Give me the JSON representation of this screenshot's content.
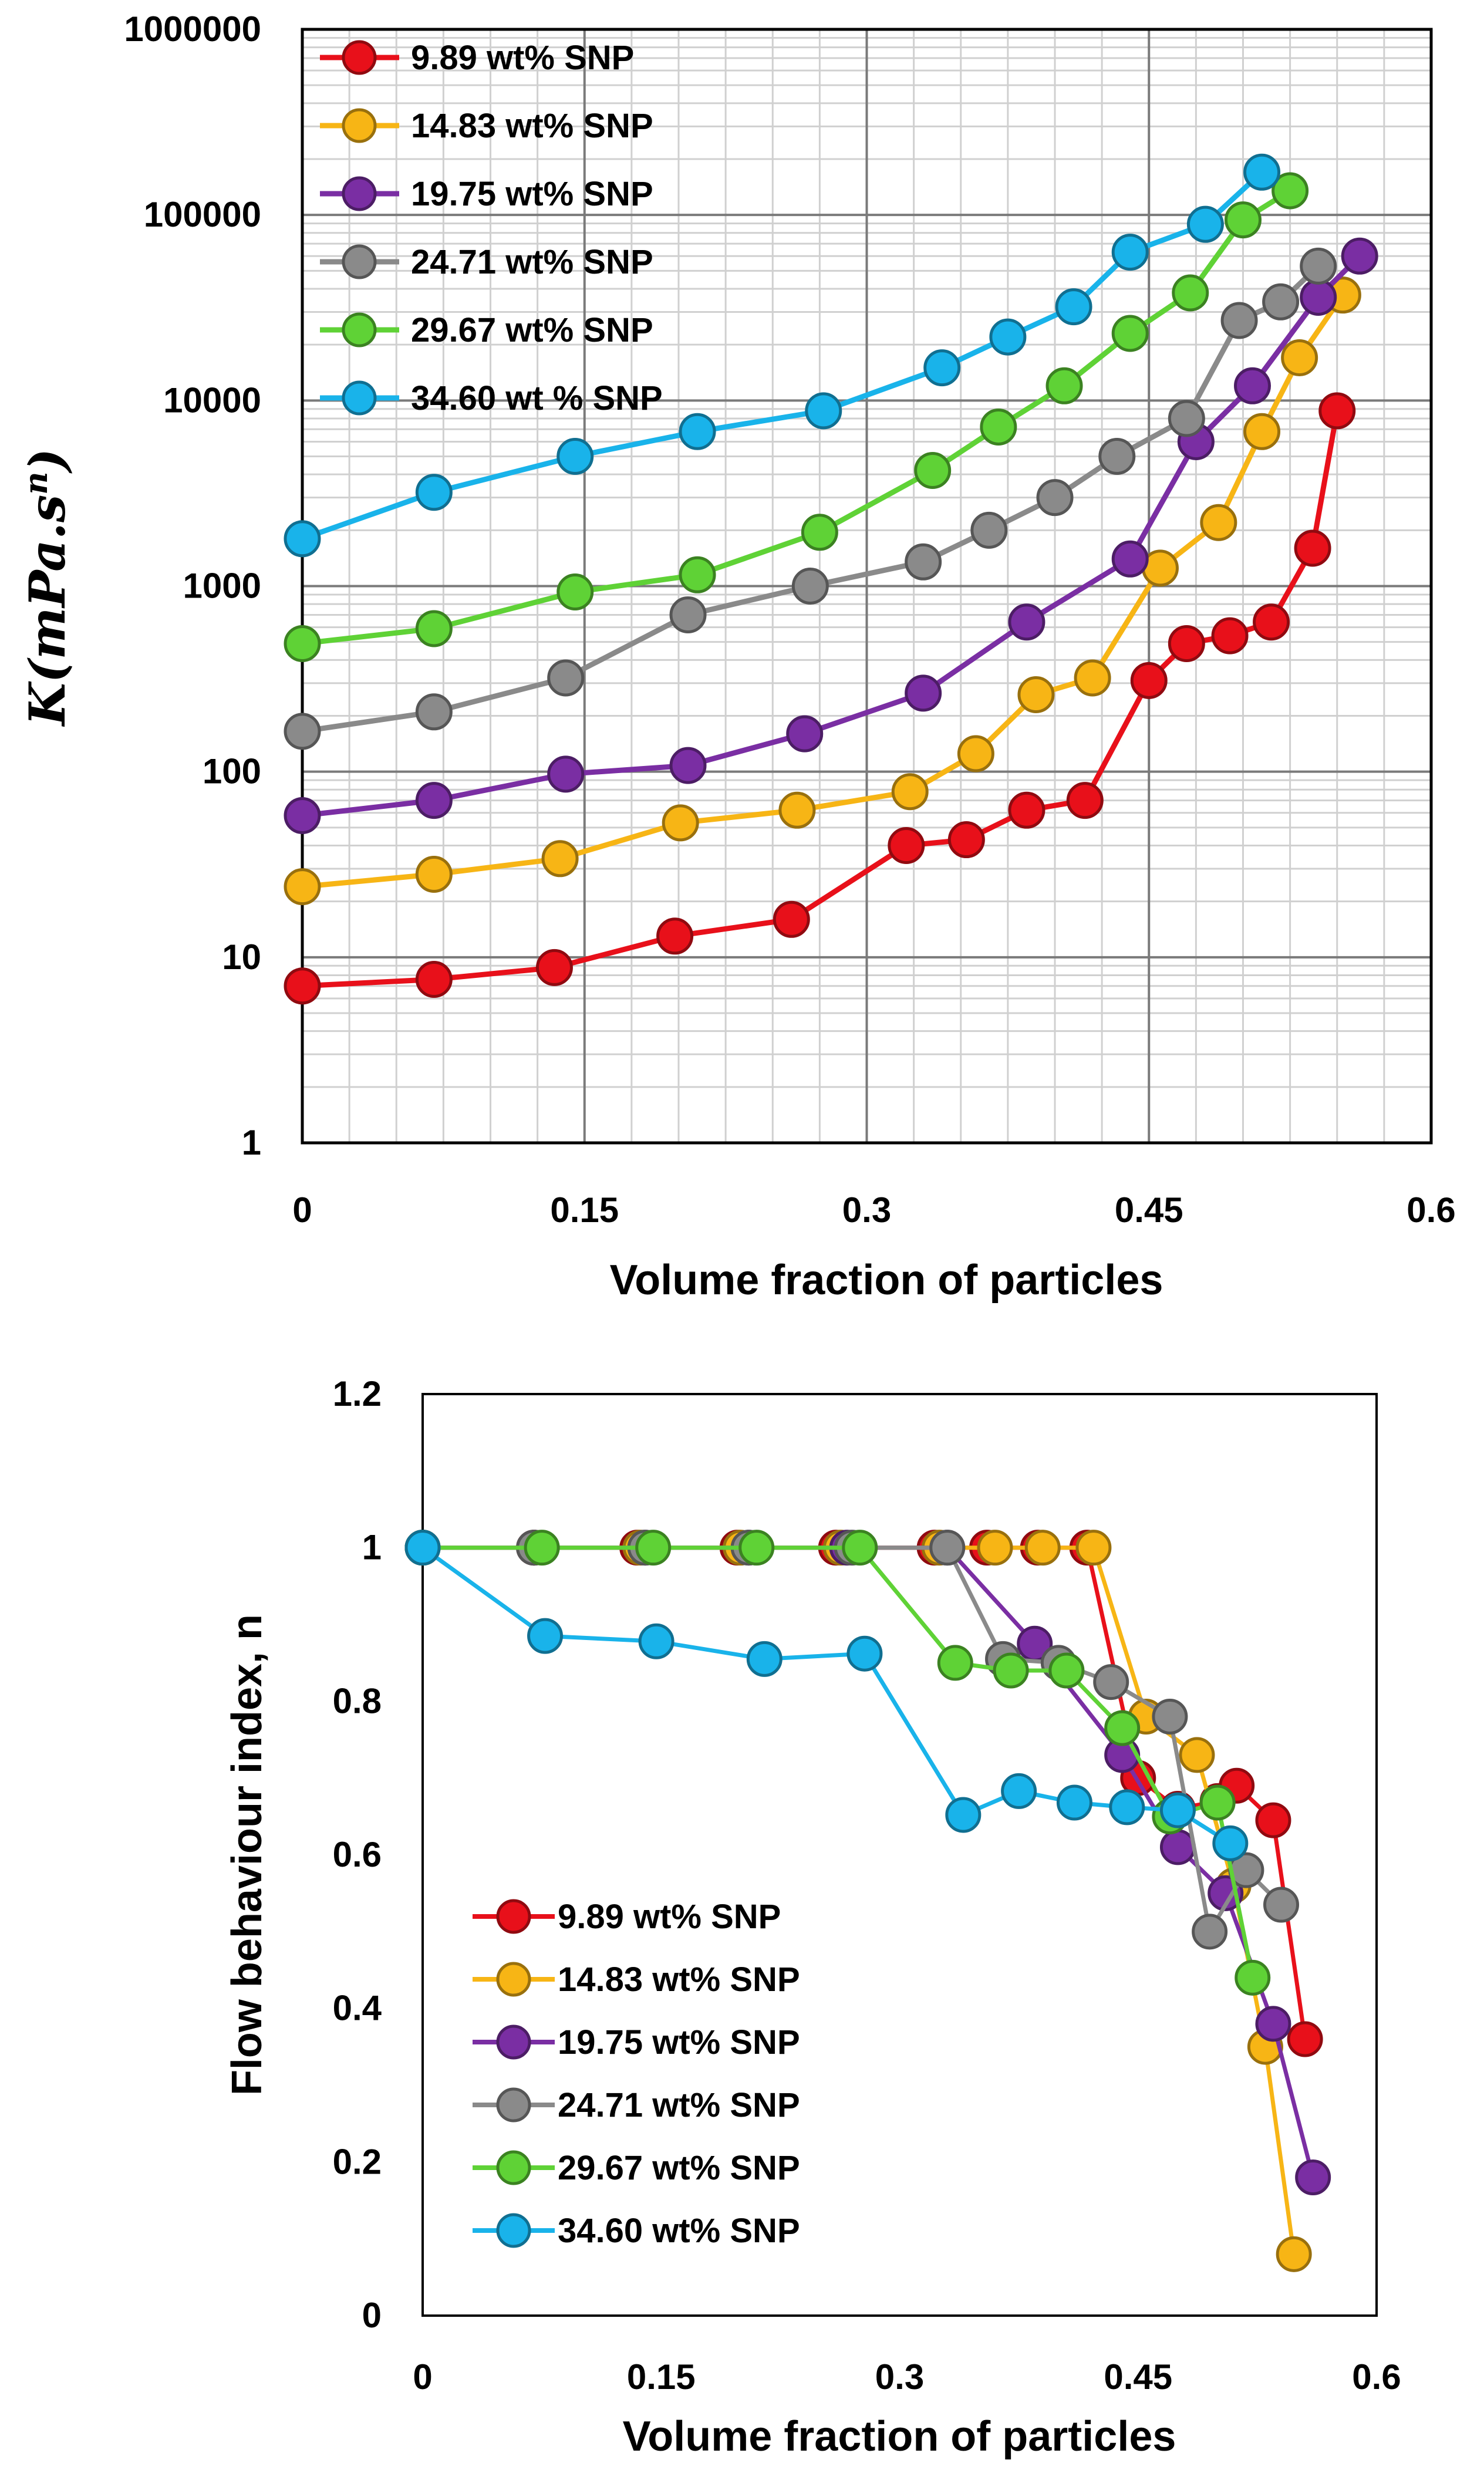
{
  "colors": {
    "s1": "#e8101a",
    "s2": "#f7b515",
    "s3": "#7a2ea3",
    "s4": "#8a8a8a",
    "s5": "#5fd236",
    "s6": "#19b3ea"
  },
  "chart_data": [
    {
      "type": "line",
      "scale": "log-y",
      "xlabel": "Volume fraction of particles",
      "ylabel": {
        "prefix": "K(",
        "base": "mPa.s",
        "sup": "n",
        "suffix": ")"
      },
      "xlim": [
        0,
        0.6
      ],
      "ylim": [
        1,
        1000000
      ],
      "x_ticks": [
        "0",
        "0.15",
        "0.3",
        "0.45",
        "0.6"
      ],
      "y_ticks": [
        "1",
        "10",
        "100",
        "1000",
        "10000",
        "100000",
        "1000000"
      ],
      "grid": true,
      "legend_position": "top-left",
      "series": [
        {
          "name": "9.89  wt% SNP",
          "x": [
            0,
            0.07,
            0.134,
            0.198,
            0.26,
            0.321,
            0.353,
            0.385,
            0.416,
            0.45,
            0.47,
            0.493,
            0.515,
            0.537,
            0.55
          ],
          "y": [
            7,
            7.6,
            8.8,
            13,
            16,
            40,
            43,
            62,
            70,
            310,
            490,
            540,
            640,
            1600,
            8800
          ]
        },
        {
          "name": "14.83 wt% SNP",
          "x": [
            0,
            0.07,
            0.137,
            0.201,
            0.263,
            0.323,
            0.358,
            0.39,
            0.42,
            0.456,
            0.487,
            0.51,
            0.53,
            0.553
          ],
          "y": [
            24,
            28,
            34,
            53,
            62,
            78,
            125,
            260,
            320,
            1250,
            2200,
            6800,
            17000,
            37000
          ]
        },
        {
          "name": "19.75 wt% SNP",
          "x": [
            0,
            0.07,
            0.14,
            0.205,
            0.267,
            0.33,
            0.385,
            0.44,
            0.475,
            0.505,
            0.54,
            0.562
          ],
          "y": [
            58,
            70,
            97,
            108,
            160,
            265,
            640,
            1400,
            6000,
            12000,
            36000,
            60000
          ]
        },
        {
          "name": "24.71 wt% SNP",
          "x": [
            0,
            0.07,
            0.14,
            0.205,
            0.27,
            0.33,
            0.365,
            0.4,
            0.433,
            0.47,
            0.498,
            0.52,
            0.54
          ],
          "y": [
            165,
            210,
            320,
            700,
            1000,
            1350,
            2000,
            3000,
            5000,
            8000,
            27000,
            34000,
            53000
          ]
        },
        {
          "name": "29.67 wt% SNP",
          "x": [
            0,
            0.07,
            0.145,
            0.21,
            0.275,
            0.335,
            0.37,
            0.405,
            0.44,
            0.472,
            0.5,
            0.525
          ],
          "y": [
            490,
            590,
            930,
            1150,
            1950,
            4200,
            7200,
            12000,
            23000,
            38000,
            94000,
            135000
          ]
        },
        {
          "name": "34.60 wt % SNP",
          "x": [
            0,
            0.07,
            0.145,
            0.21,
            0.277,
            0.34,
            0.375,
            0.41,
            0.44,
            0.48,
            0.51
          ],
          "y": [
            1800,
            3200,
            5000,
            6800,
            8800,
            15000,
            22000,
            32000,
            63000,
            89000,
            170000
          ]
        }
      ]
    },
    {
      "type": "line",
      "xlabel": "Volume fraction of particles",
      "ylabel": "Flow behaviour index, n",
      "xlim": [
        0,
        0.6
      ],
      "ylim": [
        0,
        1.2
      ],
      "x_ticks": [
        "0",
        "0.15",
        "0.3",
        "0.45",
        "0.6"
      ],
      "y_ticks": [
        "0",
        "0.2",
        "0.4",
        "0.6",
        "0.8",
        "1",
        "1.2"
      ],
      "grid": false,
      "legend_position": "bottom-left",
      "series": [
        {
          "name": "9.89  wt% SNP",
          "x": [
            0,
            0.07,
            0.135,
            0.198,
            0.26,
            0.322,
            0.355,
            0.387,
            0.418,
            0.45,
            0.475,
            0.5,
            0.512,
            0.535,
            0.555
          ],
          "y": [
            1,
            1,
            1,
            1,
            1,
            1,
            1,
            1,
            1,
            0.7,
            0.66,
            0.67,
            0.69,
            0.645,
            0.36
          ]
        },
        {
          "name": "14.83 wt% SNP",
          "x": [
            0,
            0.07,
            0.137,
            0.2,
            0.263,
            0.325,
            0.36,
            0.39,
            0.422,
            0.455,
            0.487,
            0.51,
            0.53,
            0.548
          ],
          "y": [
            1,
            1,
            1,
            1,
            1,
            1,
            1,
            1,
            1,
            0.78,
            0.73,
            0.56,
            0.35,
            0.08
          ]
        },
        {
          "name": "19.75 wt% SNP",
          "x": [
            0,
            0.07,
            0.14,
            0.205,
            0.267,
            0.33,
            0.385,
            0.44,
            0.475,
            0.505,
            0.535,
            0.56
          ],
          "y": [
            1,
            1,
            1,
            1,
            1,
            1,
            0.875,
            0.73,
            0.61,
            0.55,
            0.38,
            0.18
          ]
        },
        {
          "name": "24.71 wt% SNP",
          "x": [
            0,
            0.07,
            0.14,
            0.205,
            0.27,
            0.33,
            0.365,
            0.4,
            0.433,
            0.47,
            0.495,
            0.518,
            0.54
          ],
          "y": [
            1,
            1,
            1,
            1,
            1,
            1,
            0.855,
            0.85,
            0.825,
            0.78,
            0.5,
            0.58,
            0.535
          ]
        },
        {
          "name": "29.67 wt% SNP",
          "x": [
            0,
            0.075,
            0.145,
            0.21,
            0.275,
            0.335,
            0.37,
            0.405,
            0.44,
            0.47,
            0.5,
            0.522
          ],
          "y": [
            1,
            1,
            1,
            1,
            1,
            0.85,
            0.84,
            0.84,
            0.765,
            0.65,
            0.668,
            0.44
          ]
        },
        {
          "name": "34.60 wt% SNP",
          "x": [
            0,
            0.077,
            0.147,
            0.215,
            0.278,
            0.34,
            0.375,
            0.41,
            0.443,
            0.475,
            0.508
          ],
          "y": [
            1,
            0.885,
            0.878,
            0.855,
            0.862,
            0.652,
            0.683,
            0.668,
            0.662,
            0.658,
            0.615
          ]
        }
      ]
    }
  ]
}
